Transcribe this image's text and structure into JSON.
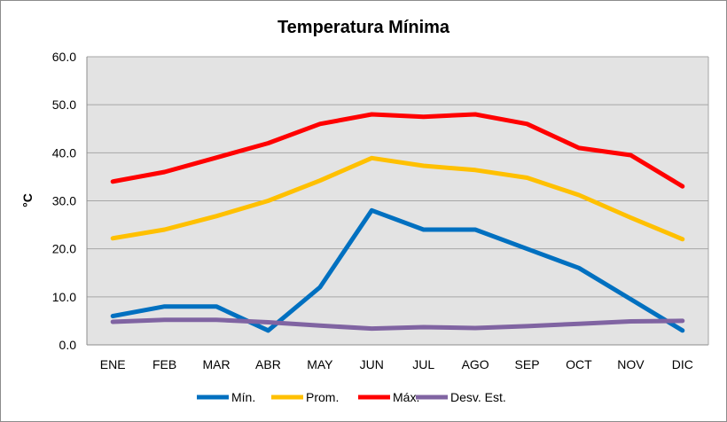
{
  "chart_data": {
    "type": "line",
    "title": "Temperatura Mínima",
    "xlabel": "",
    "ylabel": "°C",
    "categories": [
      "ENE",
      "FEB",
      "MAR",
      "ABR",
      "MAY",
      "JUN",
      "JUL",
      "AGO",
      "SEP",
      "OCT",
      "NOV",
      "DIC"
    ],
    "ylim": [
      0,
      60
    ],
    "yticks": [
      "0.0",
      "10.0",
      "20.0",
      "30.0",
      "40.0",
      "50.0",
      "60.0"
    ],
    "grid": true,
    "legend_position": "bottom",
    "series": [
      {
        "name": "Mín.",
        "color": "#0070C0",
        "values": [
          6,
          8,
          8,
          3,
          12,
          28,
          24,
          24,
          20,
          16,
          9.5,
          3
        ]
      },
      {
        "name": "Prom.",
        "color": "#FFC000",
        "values": [
          22.2,
          24,
          26.8,
          30,
          34.2,
          38.9,
          37.3,
          36.4,
          34.8,
          31.2,
          26.5,
          22
        ]
      },
      {
        "name": "Máx.",
        "color": "#FF0000",
        "values": [
          34,
          36,
          39,
          42,
          46,
          48,
          47.5,
          48,
          46,
          41,
          39.5,
          33
        ]
      },
      {
        "name": "Desv. Est.",
        "color": "#8064A2",
        "values": [
          4.8,
          5.2,
          5.2,
          4.7,
          4,
          3.4,
          3.7,
          3.5,
          3.9,
          4.4,
          4.9,
          5
        ]
      }
    ]
  }
}
